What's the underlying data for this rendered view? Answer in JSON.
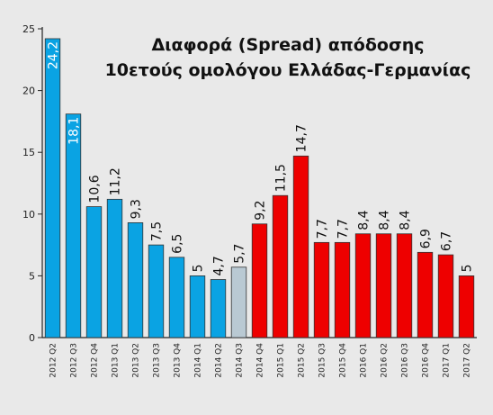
{
  "chart_data": {
    "type": "bar",
    "title_line1": "Διαφορά (Spread) απόδοσης",
    "title_line2": "10ετούς ομολόγου  Ελλάδας-Γερμανίας",
    "categories": [
      "2012 Q2",
      "2012 Q3",
      "2012 Q4",
      "2013 Q1",
      "2013 Q2",
      "2013 Q3",
      "2013 Q4",
      "2014 Q1",
      "2014 Q2",
      "2014 Q3",
      "2014 Q4",
      "2015 Q1",
      "2015 Q2",
      "2015 Q3",
      "2015 Q4",
      "2016 Q1",
      "2016 Q2",
      "2016 Q3",
      "2016 Q4",
      "2017 Q1",
      "2017 Q2"
    ],
    "values": [
      24.2,
      18.1,
      10.6,
      11.2,
      9.3,
      7.5,
      6.5,
      5,
      4.7,
      5.7,
      9.2,
      11.5,
      14.7,
      7.7,
      7.7,
      8.4,
      8.4,
      8.4,
      6.9,
      6.7,
      5
    ],
    "value_labels": [
      "24,2",
      "18,1",
      "10,6",
      "11,2",
      "9,3",
      "7,5",
      "6,5",
      "5",
      "4,7",
      "5,7",
      "9,2",
      "11,5",
      "14,7",
      "7,7",
      "7,7",
      "8,4",
      "8,4",
      "8,4",
      "6,9",
      "6,7",
      "5"
    ],
    "bar_colors": [
      "#0aa3e3",
      "#0aa3e3",
      "#0aa3e3",
      "#0aa3e3",
      "#0aa3e3",
      "#0aa3e3",
      "#0aa3e3",
      "#0aa3e3",
      "#0aa3e3",
      "#b9c9d3",
      "#ee0000",
      "#ee0000",
      "#ee0000",
      "#ee0000",
      "#ee0000",
      "#ee0000",
      "#ee0000",
      "#ee0000",
      "#ee0000",
      "#ee0000",
      "#ee0000"
    ],
    "label_inside": [
      true,
      true,
      false,
      false,
      false,
      false,
      false,
      false,
      false,
      false,
      false,
      false,
      false,
      false,
      false,
      false,
      false,
      false,
      false,
      false,
      false
    ],
    "ylim": [
      0,
      25
    ],
    "yticks": [
      "0",
      "5",
      "10",
      "15",
      "20",
      "25"
    ],
    "xlabel": "",
    "ylabel": "",
    "grid": false,
    "legend": "none"
  }
}
